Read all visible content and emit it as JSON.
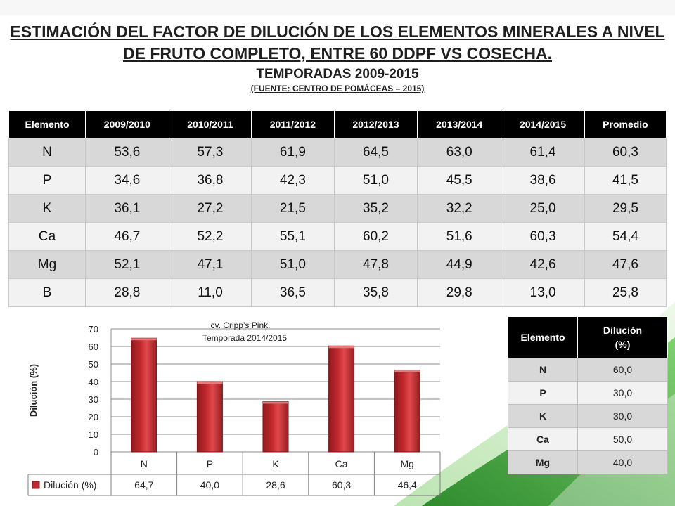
{
  "header": {
    "title_line1": "ESTIMACIÓN DEL FACTOR DE DILUCIÓN DE LOS ELEMENTOS MINERALES A NIVEL",
    "title_line2": "DE FRUTO COMPLETO, ENTRE 60 DDPF VS COSECHA.",
    "subtitle": "TEMPORADAS 2009-2015",
    "source": "(FUENTE: CENTRO DE POMÁCEAS – 2015)"
  },
  "main_table": {
    "headers": [
      "Elemento",
      "2009/2010",
      "2010/2011",
      "2011/2012",
      "2012/2013",
      "2013/2014",
      "2014/2015",
      "Promedio"
    ],
    "rows": [
      [
        "N",
        "53,6",
        "57,3",
        "61,9",
        "64,5",
        "63,0",
        "61,4",
        "60,3"
      ],
      [
        "P",
        "34,6",
        "36,8",
        "42,3",
        "51,0",
        "45,5",
        "38,6",
        "41,5"
      ],
      [
        "K",
        "36,1",
        "27,2",
        "21,5",
        "35,2",
        "32,2",
        "25,0",
        "29,5"
      ],
      [
        "Ca",
        "46,7",
        "52,2",
        "55,1",
        "60,2",
        "51,6",
        "60,3",
        "54,4"
      ],
      [
        "Mg",
        "52,1",
        "47,1",
        "51,0",
        "47,8",
        "44,9",
        "42,6",
        "47,6"
      ],
      [
        "B",
        "28,8",
        "11,0",
        "36,5",
        "35,8",
        "29,8",
        "13,0",
        "25,8"
      ]
    ]
  },
  "chart_data": {
    "type": "bar",
    "title": "cv. Cripp’s Pink.",
    "subtitle": "Temporada 2014/2015",
    "ylabel": "Dilución (%)",
    "xlabel": "",
    "categories": [
      "N",
      "P",
      "K",
      "Ca",
      "Mg"
    ],
    "series": [
      {
        "name": "Dilución (%)",
        "values": [
          64.7,
          40.0,
          28.6,
          60.3,
          46.4
        ],
        "labels": [
          "64,7",
          "40,0",
          "28,6",
          "60,3",
          "46,4"
        ],
        "color": "#c0282d"
      }
    ],
    "ylim": [
      0,
      70
    ],
    "yticks": [
      0,
      10,
      20,
      30,
      40,
      50,
      60,
      70
    ],
    "grid": true,
    "legend": "data-table-bottom"
  },
  "side_table": {
    "headers": [
      "Elemento",
      "Dilución (%)"
    ],
    "rows": [
      [
        "N",
        "60,0"
      ],
      [
        "P",
        "30,0"
      ],
      [
        "K",
        "30,0"
      ],
      [
        "Ca",
        "50,0"
      ],
      [
        "Mg",
        "40,0"
      ]
    ]
  },
  "colors": {
    "bar": "#c0282d",
    "header_bg": "#000000",
    "row_dark": "#d8d8d8",
    "row_light": "#f2f2f2",
    "accent_green": "#3aa335"
  }
}
